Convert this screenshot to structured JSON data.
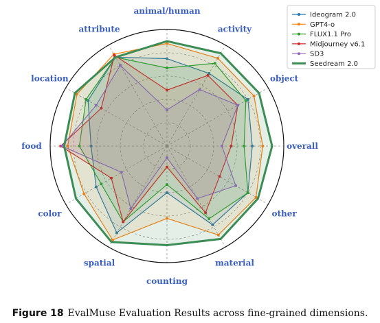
{
  "chart_data": {
    "type": "radar",
    "categories": [
      "overall",
      "object",
      "activity",
      "animal/human",
      "attribute",
      "location",
      "food",
      "color",
      "spatial",
      "counting",
      "material",
      "other"
    ],
    "rlim": [
      0,
      1
    ],
    "grid": true,
    "legend_position": "top-right",
    "series": [
      {
        "name": "Ideogram 2.0",
        "color": "#1f77b4",
        "values": [
          0.73,
          0.8,
          0.72,
          0.75,
          0.88,
          0.78,
          0.65,
          0.7,
          0.86,
          0.4,
          0.78,
          0.8
        ]
      },
      {
        "name": "GPT4-o",
        "color": "#ff7f0e",
        "values": [
          0.82,
          0.86,
          0.87,
          0.88,
          0.91,
          0.89,
          0.85,
          0.82,
          0.93,
          0.62,
          0.88,
          0.88
        ]
      },
      {
        "name": "FLUX1.1 Pro",
        "color": "#2ca02c",
        "values": [
          0.66,
          0.78,
          0.82,
          0.67,
          0.88,
          0.8,
          0.75,
          0.65,
          0.75,
          0.33,
          0.72,
          0.8
        ]
      },
      {
        "name": "Midjourney v6.1",
        "color": "#d62728",
        "values": [
          0.55,
          0.7,
          0.7,
          0.48,
          0.9,
          0.65,
          0.91,
          0.55,
          0.75,
          0.18,
          0.66,
          0.52
        ]
      },
      {
        "name": "SD3",
        "color": "#9467bd",
        "values": [
          0.47,
          0.7,
          0.56,
          0.31,
          0.8,
          0.7,
          0.9,
          0.45,
          0.62,
          0.1,
          0.52,
          0.68
        ]
      },
      {
        "name": "Seedream 2.0",
        "color": "#3c8c55",
        "values": [
          0.9,
          0.91,
          0.92,
          0.9,
          0.88,
          0.91,
          0.88,
          0.9,
          0.95,
          0.85,
          0.92,
          0.9
        ]
      }
    ]
  },
  "caption": {
    "label": "Figure 18",
    "text": "EvalMuse Evaluation Results across fine-grained dimensions."
  }
}
